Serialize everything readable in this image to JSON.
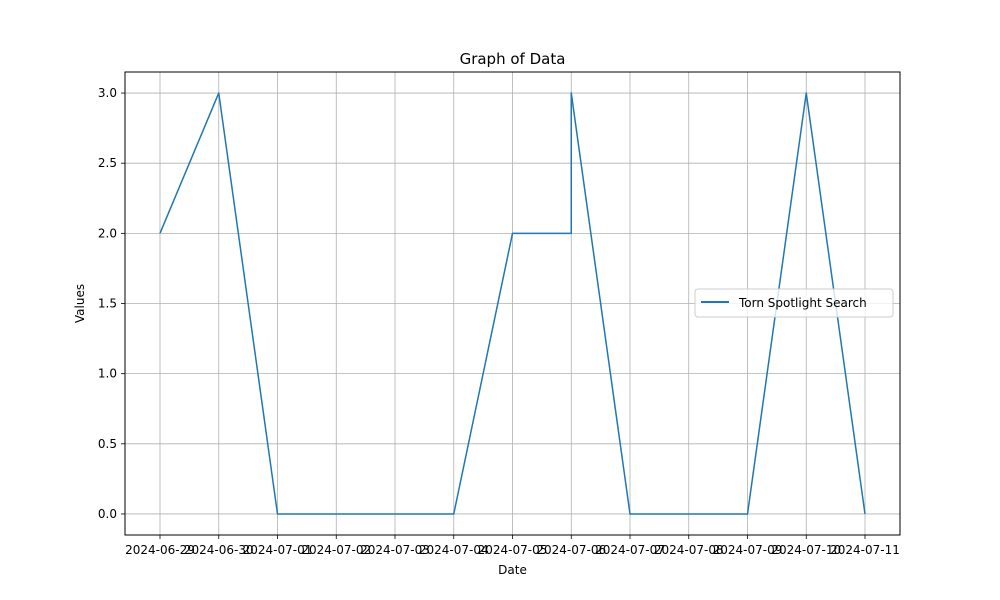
{
  "chart_data": {
    "type": "line",
    "title": "Graph of Data",
    "xlabel": "Date",
    "ylabel": "Values",
    "x_ticks": [
      "2024-06-29",
      "2024-06-30",
      "2024-07-01",
      "2024-07-02",
      "2024-07-03",
      "2024-07-04",
      "2024-07-05",
      "2024-07-06",
      "2024-07-07",
      "2024-07-08",
      "2024-07-09",
      "2024-07-10",
      "2024-07-11"
    ],
    "y_ticks": [
      "0.0",
      "0.5",
      "1.0",
      "1.5",
      "2.0",
      "2.5",
      "3.0"
    ],
    "ylim": [
      -0.15,
      3.15
    ],
    "grid": true,
    "legend_position": "center-right",
    "series": [
      {
        "name": "Torn Spotlight Search",
        "color": "#1f77b4",
        "points": [
          {
            "x": "2024-06-29",
            "y": 2
          },
          {
            "x": "2024-06-30",
            "y": 3
          },
          {
            "x": "2024-07-01",
            "y": 0
          },
          {
            "x": "2024-07-02",
            "y": 0
          },
          {
            "x": "2024-07-03",
            "y": 0
          },
          {
            "x": "2024-07-04",
            "y": 0
          },
          {
            "x": "2024-07-05",
            "y": 2
          },
          {
            "x": "2024-07-06",
            "y": 2
          },
          {
            "x": "2024-07-06",
            "y": 3
          },
          {
            "x": "2024-07-07",
            "y": 0
          },
          {
            "x": "2024-07-08",
            "y": 0
          },
          {
            "x": "2024-07-09",
            "y": 0
          },
          {
            "x": "2024-07-10",
            "y": 3
          },
          {
            "x": "2024-07-11",
            "y": 0
          }
        ]
      }
    ]
  }
}
